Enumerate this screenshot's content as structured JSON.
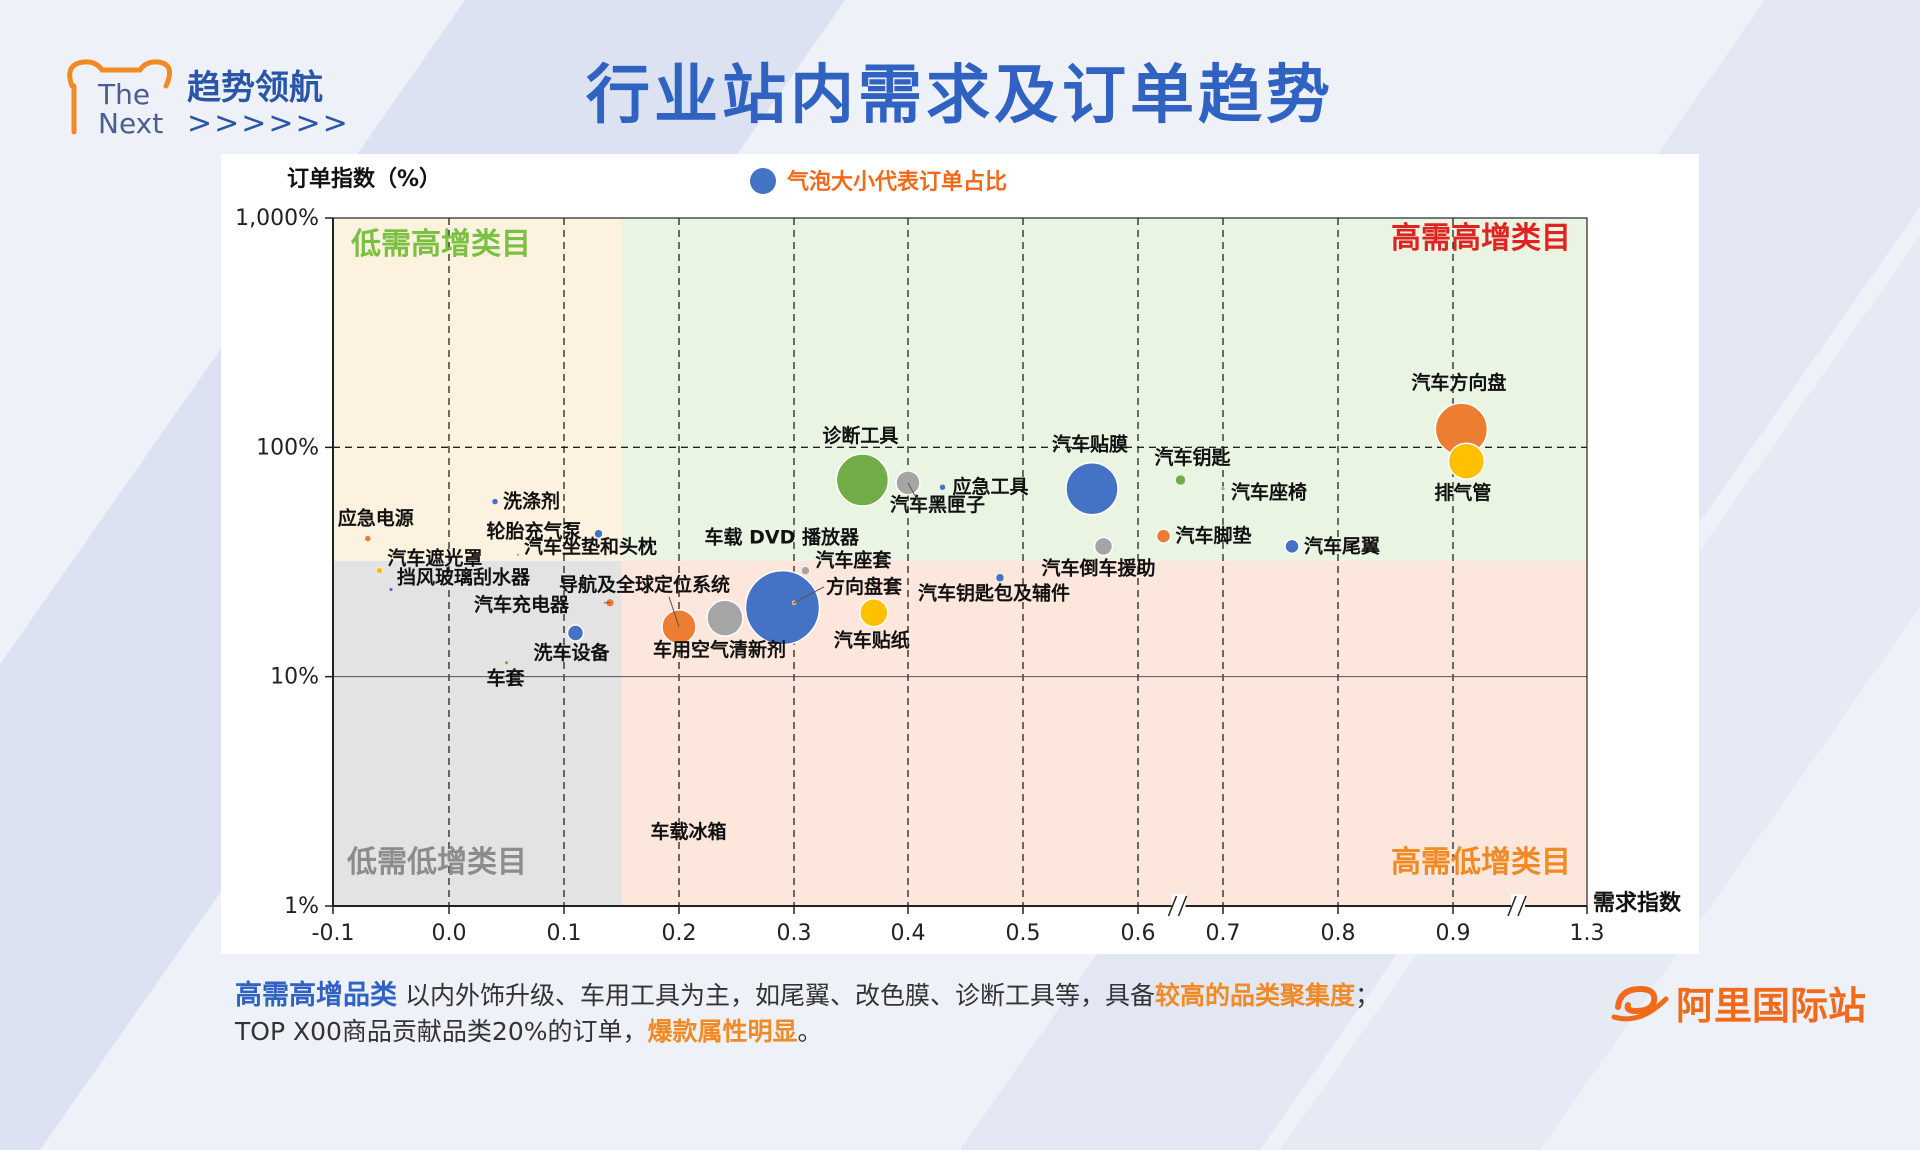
{
  "header": {
    "logo_en_line1": "The",
    "logo_en_line2": "Next",
    "logo_cn": "趋势领航",
    "logo_arrows": ">>>>>>",
    "title": "行业站内需求及订单趋势"
  },
  "colors": {
    "title": "#2f62c1",
    "blue": "#4472c4",
    "orange": "#ed7d31",
    "gray": "#a5a5a5",
    "yellow": "#ffc000",
    "green": "#70ad47",
    "zone_low_high": "#fdf2df",
    "zone_high_high": "#e9f4e3",
    "zone_low_low": "#e3e3e3",
    "zone_high_low": "#fde6db",
    "brand_orange": "#f06a1a"
  },
  "chart_data": {
    "type": "scatter",
    "title": "",
    "ylabel": "订单指数（%）",
    "xlabel": "需求指数",
    "legend": {
      "text": "气泡大小代表订单占比",
      "placement": "top-center"
    },
    "y_scale": "log",
    "ylim": [
      1,
      1000
    ],
    "y_ticks": [
      {
        "value": 1,
        "label": "1%"
      },
      {
        "value": 10,
        "label": "10%"
      },
      {
        "value": 100,
        "label": "100%"
      },
      {
        "value": 1000,
        "label": "1,000%"
      }
    ],
    "x_axis_note": "axis broken between 0.6 and 0.7 and between 0.9 and 1.3",
    "x_ticks": [
      {
        "value": -0.1,
        "label": "-0.1"
      },
      {
        "value": 0.0,
        "label": "0.0"
      },
      {
        "value": 0.1,
        "label": "0.1"
      },
      {
        "value": 0.2,
        "label": "0.2"
      },
      {
        "value": 0.3,
        "label": "0.3"
      },
      {
        "value": 0.4,
        "label": "0.4"
      },
      {
        "value": 0.5,
        "label": "0.5"
      },
      {
        "value": 0.6,
        "label": "0.6"
      },
      {
        "value": 0.7,
        "label": "0.7"
      },
      {
        "value": 0.8,
        "label": "0.8"
      },
      {
        "value": 0.9,
        "label": "0.9"
      },
      {
        "value": 1.3,
        "label": "1.3"
      }
    ],
    "divider": {
      "x": 0.15,
      "y": 32
    },
    "quadrants": [
      {
        "label": "低需高增类目",
        "zone": "top-left",
        "color": "#7ac143"
      },
      {
        "label": "高需高增类目",
        "zone": "top-right",
        "color": "#e0231f"
      },
      {
        "label": "低需低增类目",
        "zone": "bottom-left",
        "color": "#8c8c8c"
      },
      {
        "label": "高需低增类目",
        "zone": "bottom-right",
        "color": "#f08a24"
      }
    ],
    "points": [
      {
        "label": "汽车方向盘",
        "x": 0.925,
        "y": 120,
        "size": 26,
        "color": "orange"
      },
      {
        "label": "排气管",
        "x": 0.94,
        "y": 87,
        "size": 18,
        "color": "yellow"
      },
      {
        "label": "汽车贴膜",
        "x": 0.56,
        "y": 66,
        "size": 26,
        "color": "blue"
      },
      {
        "label": "诊断工具",
        "x": 0.36,
        "y": 72,
        "size": 26,
        "color": "green"
      },
      {
        "label": "汽车黑匣子",
        "x": 0.4,
        "y": 70,
        "size": 12,
        "color": "gray"
      },
      {
        "label": "应急工具",
        "x": 0.43,
        "y": 67,
        "size": 3,
        "color": "blue"
      },
      {
        "label": "汽车钥匙",
        "x": 0.65,
        "y": 72,
        "size": 5,
        "color": "green"
      },
      {
        "label": "汽车座椅",
        "x": 0.7,
        "y": 66,
        "size": 2,
        "color": "gray"
      },
      {
        "label": "汽车脚垫",
        "x": 0.63,
        "y": 41,
        "size": 7,
        "color": "orange"
      },
      {
        "label": "汽车尾翼",
        "x": 0.76,
        "y": 37,
        "size": 7,
        "color": "blue"
      },
      {
        "label": "汽车倒车援助",
        "x": 0.57,
        "y": 37,
        "size": 9,
        "color": "gray"
      },
      {
        "label": "汽车钥匙包及辅件",
        "x": 0.48,
        "y": 27,
        "size": 4,
        "color": "blue"
      },
      {
        "label": "车载 DVD 播放器",
        "x": 0.29,
        "y": 20,
        "size": 37,
        "color": "blue"
      },
      {
        "label": "汽车座套",
        "x": 0.31,
        "y": 29,
        "size": 4,
        "color": "gray"
      },
      {
        "label": "方向盘套",
        "x": 0.3,
        "y": 21,
        "size": 2,
        "color": "orange"
      },
      {
        "label": "汽车贴纸",
        "x": 0.37,
        "y": 19,
        "size": 14,
        "color": "yellow"
      },
      {
        "label": "车用空气清新剂",
        "x": 0.24,
        "y": 18,
        "size": 18,
        "color": "gray"
      },
      {
        "label": "导航及全球定位系统",
        "x": 0.2,
        "y": 16.5,
        "size": 17,
        "color": "orange"
      },
      {
        "label": "汽车充电器",
        "x": 0.14,
        "y": 21,
        "size": 4,
        "color": "orange"
      },
      {
        "label": "洗车设备",
        "x": 0.11,
        "y": 15.5,
        "size": 8,
        "color": "blue"
      },
      {
        "label": "车套",
        "x": 0.05,
        "y": 11.5,
        "size": 2,
        "color": "green"
      },
      {
        "label": "洗涤剂",
        "x": 0.04,
        "y": 58,
        "size": 3,
        "color": "blue"
      },
      {
        "label": "轮胎充气泵",
        "x": 0.13,
        "y": 42,
        "size": 4,
        "color": "blue"
      },
      {
        "label": "汽车坐垫和头枕",
        "x": 0.06,
        "y": 34,
        "size": 1.5,
        "color": "gray"
      },
      {
        "label": "应急电源",
        "x": -0.07,
        "y": 40,
        "size": 3,
        "color": "orange"
      },
      {
        "label": "汽车遮光罩",
        "x": -0.06,
        "y": 29,
        "size": 3,
        "color": "yellow"
      },
      {
        "label": "挡风玻璃刮水器",
        "x": -0.05,
        "y": 24,
        "size": 2,
        "color": "blue"
      },
      {
        "label": "车载冰箱",
        "x": 0.21,
        "y": 2.1,
        "size": 0,
        "color": "gray"
      }
    ]
  },
  "footer": {
    "lead": "高需高增品类",
    "text1": " 以内外饰升级、车用工具为主，如尾翼、改色膜、诊断工具等，具备",
    "highlight1": "较高的品类聚集度",
    "text2": "；",
    "line2_text": "TOP X00商品贡献品类20%的订单，",
    "highlight2": "爆款属性明显",
    "line2_end": "。"
  },
  "brand": {
    "name": "阿里国际站",
    "mark": "alibaba-smile-icon"
  }
}
